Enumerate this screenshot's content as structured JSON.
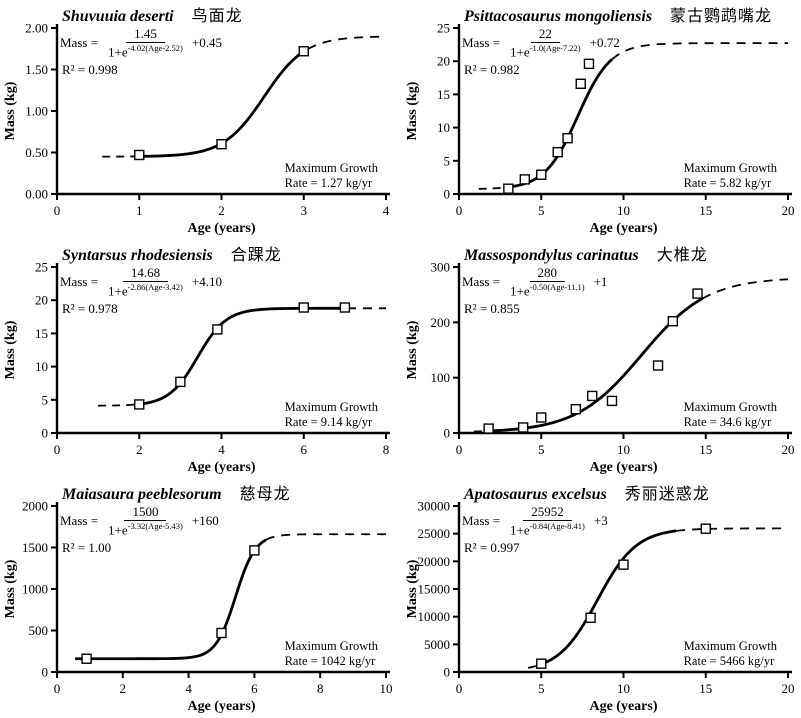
{
  "figure": {
    "background": "#ffffff",
    "ink_color": "#000000",
    "max_growth_line1": "Maximum Growth",
    "r2_prefix": "R² = "
  },
  "chart_data": [
    {
      "type": "scatter",
      "fit": "logistic",
      "title": "Shuvuuia deserti",
      "title_cn": "鸟面龙",
      "xlabel": "Age (years)",
      "ylabel": "Mass (kg)",
      "equation": {
        "lhs": "Mass =",
        "numerator": "1.45",
        "denominator_base": "1+e",
        "exponent": "-4.02(Age-2.52)",
        "constant": "+0.45"
      },
      "r2": "R² = 0.998",
      "rate_line": "Rate = 1.27 kg/yr",
      "xlim": [
        0,
        4
      ],
      "ylim": [
        0,
        2
      ],
      "xticks": [
        0,
        1,
        2,
        3,
        4
      ],
      "xtick_labels": [
        "0",
        "1",
        "2",
        "3",
        "4"
      ],
      "yticks": [
        0,
        0.5,
        1.0,
        1.5,
        2.0
      ],
      "ytick_labels": [
        "0.00",
        "0.50",
        "1.00",
        "1.50",
        "2.00"
      ],
      "points": [
        [
          1,
          0.47
        ],
        [
          2,
          0.6
        ],
        [
          3,
          1.72
        ]
      ],
      "curve": {
        "K": 1.45,
        "a": 4.02,
        "t0": 2.52,
        "c": 0.45,
        "dash_left": [
          0.55,
          1.0
        ],
        "solid": [
          1.0,
          3.05
        ],
        "dash_right": [
          3.05,
          4.0
        ]
      }
    },
    {
      "type": "scatter",
      "fit": "logistic",
      "title": "Psittacosaurus mongoliensis",
      "title_cn": "蒙古鹦鹉嘴龙",
      "xlabel": "Age (years)",
      "ylabel": "Mass (kg)",
      "equation": {
        "lhs": "Mass =",
        "numerator": "22",
        "denominator_base": "1+e",
        "exponent": "-1.0(Age-7.22)",
        "constant": "+0.72"
      },
      "r2": "R² = 0.982",
      "rate_line": "Rate = 5.82 kg/yr",
      "xlim": [
        0,
        20
      ],
      "ylim": [
        0,
        25
      ],
      "xticks": [
        0,
        5,
        10,
        15,
        20
      ],
      "xtick_labels": [
        "0",
        "5",
        "10",
        "15",
        "20"
      ],
      "yticks": [
        0,
        5,
        10,
        15,
        20,
        25
      ],
      "ytick_labels": [
        "0",
        "5",
        "10",
        "15",
        "20",
        "25"
      ],
      "points": [
        [
          3,
          0.8
        ],
        [
          4,
          2.2
        ],
        [
          5,
          2.9
        ],
        [
          6,
          6.3
        ],
        [
          6.6,
          8.4
        ],
        [
          7.4,
          16.6
        ],
        [
          7.9,
          19.6
        ]
      ],
      "curve": {
        "K": 22,
        "a": 1.0,
        "t0": 7.22,
        "c": 0.72,
        "dash_left": [
          1.2,
          3.2
        ],
        "solid": [
          3.2,
          9.3
        ],
        "dash_right": [
          9.3,
          20
        ]
      }
    },
    {
      "type": "scatter",
      "fit": "logistic",
      "title": "Syntarsus rhodesiensis",
      "title_cn": "合踝龙",
      "xlabel": "Age (years)",
      "ylabel": "Mass (kg)",
      "equation": {
        "lhs": "Mass =",
        "numerator": "14.68",
        "denominator_base": "1+e",
        "exponent": "-2.86(Age-3.42)",
        "constant": "+4.10"
      },
      "r2": "R² = 0.978",
      "rate_line": "Rate = 9.14 kg/yr",
      "xlim": [
        0,
        8
      ],
      "ylim": [
        0,
        25
      ],
      "xticks": [
        0,
        2,
        4,
        6,
        8
      ],
      "xtick_labels": [
        "0",
        "2",
        "4",
        "6",
        "8"
      ],
      "yticks": [
        0,
        5,
        10,
        15,
        20,
        25
      ],
      "ytick_labels": [
        "0",
        "5",
        "10",
        "15",
        "20",
        "25"
      ],
      "points": [
        [
          2,
          4.3
        ],
        [
          3,
          7.7
        ],
        [
          3.9,
          15.6
        ],
        [
          6,
          18.9
        ],
        [
          7,
          18.9
        ]
      ],
      "curve": {
        "K": 14.68,
        "a": 2.86,
        "t0": 3.42,
        "c": 4.1,
        "dash_left": [
          1.0,
          2.05
        ],
        "solid": [
          2.05,
          7.05
        ],
        "dash_right": [
          7.05,
          8.0
        ]
      }
    },
    {
      "type": "scatter",
      "fit": "logistic",
      "title": "Massospondylus carinatus",
      "title_cn": "大椎龙",
      "xlabel": "Age (years)",
      "ylabel": "Mass (kg)",
      "equation": {
        "lhs": "Mass =",
        "numerator": "280",
        "denominator_base": "1+e",
        "exponent": "-0.50(Age-11.1)",
        "constant": "+1"
      },
      "r2": "R² = 0.855",
      "rate_line": "Rate = 34.6 kg/yr",
      "xlim": [
        0,
        20
      ],
      "ylim": [
        0,
        300
      ],
      "xticks": [
        0,
        5,
        10,
        15,
        20
      ],
      "xtick_labels": [
        "0",
        "5",
        "10",
        "15",
        "20"
      ],
      "yticks": [
        0,
        100,
        200,
        300
      ],
      "ytick_labels": [
        "0",
        "100",
        "200",
        "300"
      ],
      "points": [
        [
          1.8,
          8
        ],
        [
          3.9,
          10
        ],
        [
          5,
          28
        ],
        [
          7.1,
          43
        ],
        [
          8.1,
          67
        ],
        [
          9.3,
          58
        ],
        [
          12.1,
          122
        ],
        [
          13,
          202
        ],
        [
          14.5,
          252
        ]
      ],
      "curve": {
        "K": 280,
        "a": 0.5,
        "t0": 11.1,
        "c": 1,
        "dash_left": [
          0.9,
          1.7
        ],
        "solid": [
          1.7,
          14.8
        ],
        "dash_right": [
          14.8,
          20
        ]
      }
    },
    {
      "type": "scatter",
      "fit": "logistic",
      "title": "Maiasaura peeblesorum",
      "title_cn": "慈母龙",
      "xlabel": "Age (years)",
      "ylabel": "Mass (kg)",
      "equation": {
        "lhs": "Mass =",
        "numerator": "1500",
        "denominator_base": "1+e",
        "exponent": "-3.32(Age-5.43)",
        "constant": "+160"
      },
      "r2": "R² = 1.00",
      "rate_line": "Rate = 1042 kg/yr",
      "xlim": [
        0,
        10
      ],
      "ylim": [
        0,
        2000
      ],
      "xticks": [
        0,
        2,
        4,
        6,
        8,
        10
      ],
      "xtick_labels": [
        "0",
        "2",
        "4",
        "6",
        "8",
        "10"
      ],
      "yticks": [
        0,
        500,
        1000,
        1500,
        2000
      ],
      "ytick_labels": [
        "0",
        "500",
        "1000",
        "1500",
        "2000"
      ],
      "points": [
        [
          0.9,
          160
        ],
        [
          5,
          470
        ],
        [
          6,
          1465
        ]
      ],
      "curve": {
        "K": 1500,
        "a": 3.32,
        "t0": 5.43,
        "c": 160,
        "dash_left": null,
        "solid": [
          0.55,
          6.35
        ],
        "dash_right": [
          6.35,
          10
        ]
      }
    },
    {
      "type": "scatter",
      "fit": "logistic",
      "title": "Apatosaurus excelsus",
      "title_cn": "秀丽迷惑龙",
      "xlabel": "Age (years)",
      "ylabel": "Mass (kg)",
      "equation": {
        "lhs": "Mass =",
        "numerator": "25952",
        "denominator_base": "1+e",
        "exponent": "-0.84(Age-8.41)",
        "constant": "+3"
      },
      "r2": "R² = 0.997",
      "rate_line": "Rate = 5466 kg/yr",
      "xlim": [
        0,
        20
      ],
      "ylim": [
        0,
        30000
      ],
      "xticks": [
        0,
        5,
        10,
        15,
        20
      ],
      "xtick_labels": [
        "0",
        "5",
        "10",
        "15",
        "20"
      ],
      "yticks": [
        0,
        5000,
        10000,
        15000,
        20000,
        25000,
        30000
      ],
      "ytick_labels": [
        "0",
        "5000",
        "10000",
        "15000",
        "20000",
        "25000",
        "30000"
      ],
      "points": [
        [
          5,
          1500
        ],
        [
          8,
          9800
        ],
        [
          10,
          19400
        ],
        [
          15,
          25900
        ]
      ],
      "curve": {
        "K": 25952,
        "a": 0.84,
        "t0": 8.41,
        "c": 3,
        "dash_left": [
          4.2,
          5.0
        ],
        "solid": [
          5.0,
          13.2
        ],
        "dash_right": [
          13.2,
          20
        ]
      }
    }
  ]
}
